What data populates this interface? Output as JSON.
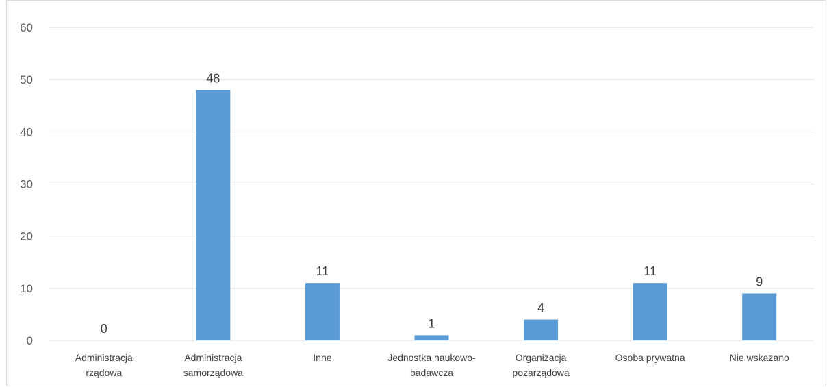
{
  "chart_data": {
    "type": "bar",
    "title": "",
    "xlabel": "",
    "ylabel": "",
    "categories": [
      [
        "Administracja",
        "rządowa"
      ],
      [
        "Administracja",
        "samorządowa"
      ],
      [
        "Inne"
      ],
      [
        "Jednostka naukowo-",
        "badawcza"
      ],
      [
        "Organizacja",
        "pozarządowa"
      ],
      [
        "Osoba prywatna"
      ],
      [
        "Nie wskazano"
      ]
    ],
    "values": [
      0,
      48,
      11,
      1,
      4,
      11,
      9
    ],
    "ylim": [
      0,
      60
    ],
    "yticks": [
      0,
      10,
      20,
      30,
      40,
      50,
      60
    ],
    "grid": true,
    "legend": "none",
    "data_labels": true,
    "colors": {
      "bar": "#5b9bd5",
      "grid": "#d9d9d9",
      "tick_text": "#595959",
      "label_text": "#404040"
    }
  }
}
